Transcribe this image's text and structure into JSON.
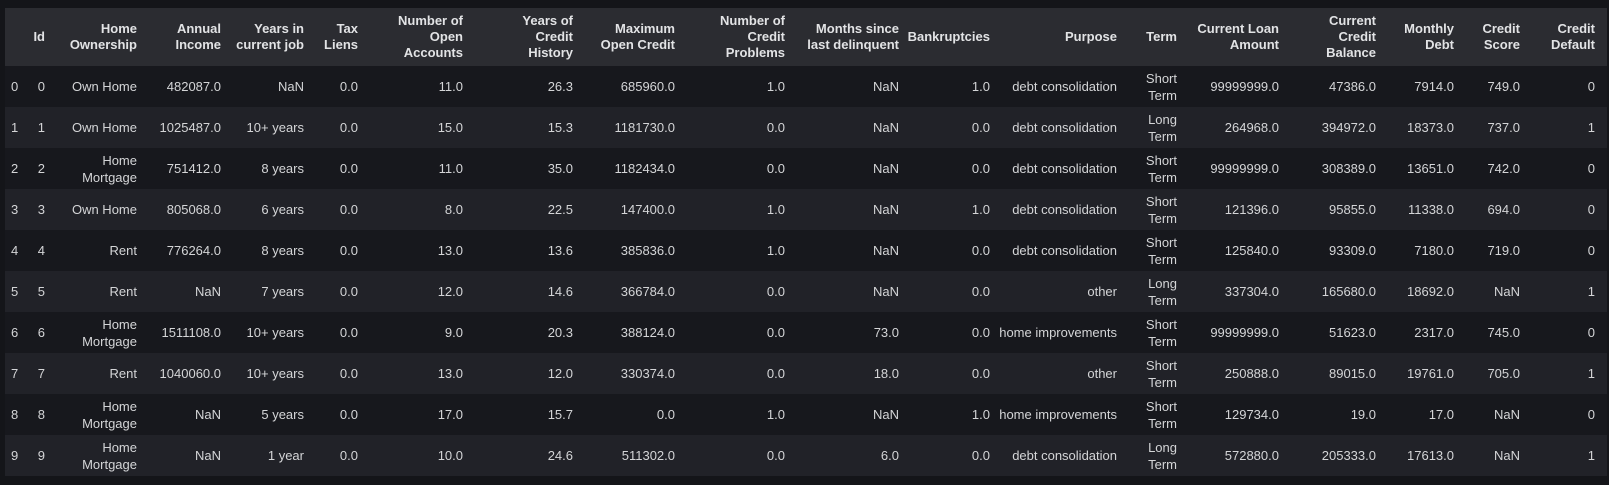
{
  "colors": {
    "page_bg": "#141519",
    "header_bg": "#2b2c31",
    "row_even_bg": "#17181d",
    "row_odd_bg": "#212228",
    "header_text": "#e2e3e5",
    "cell_text": "#d4d5d7"
  },
  "table": {
    "columns": [
      {
        "name": "index",
        "label": ""
      },
      {
        "name": "id",
        "label": "Id"
      },
      {
        "name": "home-ownership",
        "label": "Home\nOwnership"
      },
      {
        "name": "annual-income",
        "label": "Annual\nIncome"
      },
      {
        "name": "years-in-current-job",
        "label": "Years in\ncurrent job"
      },
      {
        "name": "tax-liens",
        "label": "Tax\nLiens"
      },
      {
        "name": "number-of-open-accounts",
        "label": "Number of\nOpen\nAccounts"
      },
      {
        "name": "years-of-credit-history",
        "label": "Years of\nCredit\nHistory"
      },
      {
        "name": "maximum-open-credit",
        "label": "Maximum\nOpen Credit"
      },
      {
        "name": "number-of-credit-problems",
        "label": "Number of\nCredit\nProblems"
      },
      {
        "name": "months-since-last-delinquent",
        "label": "Months since\nlast delinquent"
      },
      {
        "name": "bankruptcies",
        "label": "Bankruptcies"
      },
      {
        "name": "purpose",
        "label": "Purpose"
      },
      {
        "name": "term",
        "label": "Term"
      },
      {
        "name": "current-loan-amount",
        "label": "Current Loan\nAmount"
      },
      {
        "name": "current-credit-balance",
        "label": "Current\nCredit\nBalance"
      },
      {
        "name": "monthly-debt",
        "label": "Monthly\nDebt"
      },
      {
        "name": "credit-score",
        "label": "Credit\nScore"
      },
      {
        "name": "credit-default",
        "label": "Credit\nDefault"
      }
    ],
    "rows": [
      [
        "0",
        "0",
        "Own Home",
        "482087.0",
        "NaN",
        "0.0",
        "11.0",
        "26.3",
        "685960.0",
        "1.0",
        "NaN",
        "1.0",
        "debt consolidation",
        "Short Term",
        "99999999.0",
        "47386.0",
        "7914.0",
        "749.0",
        "0"
      ],
      [
        "1",
        "1",
        "Own Home",
        "1025487.0",
        "10+ years",
        "0.0",
        "15.0",
        "15.3",
        "1181730.0",
        "0.0",
        "NaN",
        "0.0",
        "debt consolidation",
        "Long Term",
        "264968.0",
        "394972.0",
        "18373.0",
        "737.0",
        "1"
      ],
      [
        "2",
        "2",
        "Home Mortgage",
        "751412.0",
        "8 years",
        "0.0",
        "11.0",
        "35.0",
        "1182434.0",
        "0.0",
        "NaN",
        "0.0",
        "debt consolidation",
        "Short Term",
        "99999999.0",
        "308389.0",
        "13651.0",
        "742.0",
        "0"
      ],
      [
        "3",
        "3",
        "Own Home",
        "805068.0",
        "6 years",
        "0.0",
        "8.0",
        "22.5",
        "147400.0",
        "1.0",
        "NaN",
        "1.0",
        "debt consolidation",
        "Short Term",
        "121396.0",
        "95855.0",
        "11338.0",
        "694.0",
        "0"
      ],
      [
        "4",
        "4",
        "Rent",
        "776264.0",
        "8 years",
        "0.0",
        "13.0",
        "13.6",
        "385836.0",
        "1.0",
        "NaN",
        "0.0",
        "debt consolidation",
        "Short Term",
        "125840.0",
        "93309.0",
        "7180.0",
        "719.0",
        "0"
      ],
      [
        "5",
        "5",
        "Rent",
        "NaN",
        "7 years",
        "0.0",
        "12.0",
        "14.6",
        "366784.0",
        "0.0",
        "NaN",
        "0.0",
        "other",
        "Long Term",
        "337304.0",
        "165680.0",
        "18692.0",
        "NaN",
        "1"
      ],
      [
        "6",
        "6",
        "Home Mortgage",
        "1511108.0",
        "10+ years",
        "0.0",
        "9.0",
        "20.3",
        "388124.0",
        "0.0",
        "73.0",
        "0.0",
        "home improvements",
        "Short Term",
        "99999999.0",
        "51623.0",
        "2317.0",
        "745.0",
        "0"
      ],
      [
        "7",
        "7",
        "Rent",
        "1040060.0",
        "10+ years",
        "0.0",
        "13.0",
        "12.0",
        "330374.0",
        "0.0",
        "18.0",
        "0.0",
        "other",
        "Short Term",
        "250888.0",
        "89015.0",
        "19761.0",
        "705.0",
        "1"
      ],
      [
        "8",
        "8",
        "Home Mortgage",
        "NaN",
        "5 years",
        "0.0",
        "17.0",
        "15.7",
        "0.0",
        "1.0",
        "NaN",
        "1.0",
        "home improvements",
        "Short Term",
        "129734.0",
        "19.0",
        "17.0",
        "NaN",
        "0"
      ],
      [
        "9",
        "9",
        "Home Mortgage",
        "NaN",
        "1 year",
        "0.0",
        "10.0",
        "24.6",
        "511302.0",
        "0.0",
        "6.0",
        "0.0",
        "debt consolidation",
        "Long Term",
        "572880.0",
        "205333.0",
        "17613.0",
        "NaN",
        "1"
      ]
    ]
  }
}
